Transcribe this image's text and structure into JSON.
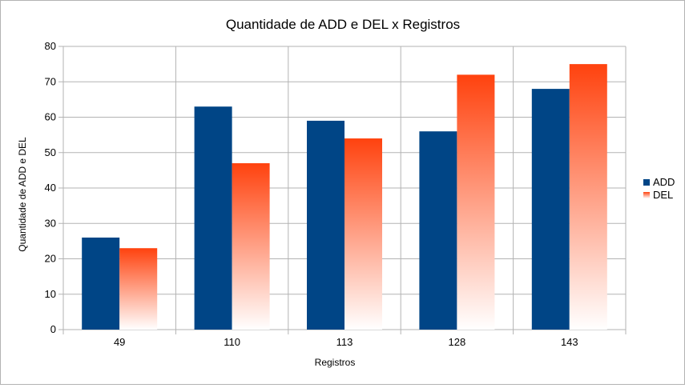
{
  "chart_data": {
    "type": "bar",
    "title": "Quantidade de ADD e DEL x Registros",
    "xlabel": "Registros",
    "ylabel": "Quantidade de ADD e DEL",
    "categories": [
      "49",
      "110",
      "113",
      "128",
      "143"
    ],
    "series": [
      {
        "name": "ADD",
        "values": [
          26,
          63,
          59,
          56,
          68
        ],
        "color": "#004586"
      },
      {
        "name": "DEL",
        "values": [
          23,
          47,
          54,
          72,
          75
        ],
        "color": "#ff420e"
      }
    ],
    "ylim": [
      0,
      80
    ],
    "yticks": [
      0,
      10,
      20,
      30,
      40,
      50,
      60,
      70,
      80
    ],
    "grid": true,
    "legend_position": "right"
  }
}
